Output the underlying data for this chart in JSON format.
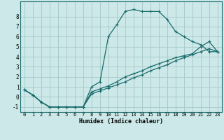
{
  "xlabel": "Humidex (Indice chaleur)",
  "bg_color": "#cce8e8",
  "grid_color": "#aacccc",
  "line_color": "#1a6b6b",
  "xlim": [
    -0.5,
    23.5
  ],
  "ylim": [
    -1.5,
    9.5
  ],
  "xticks": [
    0,
    1,
    2,
    3,
    4,
    5,
    6,
    7,
    8,
    9,
    10,
    11,
    12,
    13,
    14,
    15,
    16,
    17,
    18,
    19,
    20,
    21,
    22,
    23
  ],
  "yticks": [
    -1,
    0,
    1,
    2,
    3,
    4,
    5,
    6,
    7,
    8
  ],
  "line1_x": [
    0,
    1,
    2,
    3,
    4,
    5,
    6,
    7,
    8,
    9,
    10,
    11,
    12,
    13,
    14,
    15,
    16,
    17,
    18,
    19,
    20,
    21,
    22,
    23
  ],
  "line1_y": [
    0.7,
    0.2,
    -0.5,
    -1.0,
    -1.0,
    -1.0,
    -1.0,
    -1.0,
    1.0,
    1.5,
    6.0,
    7.2,
    8.5,
    8.7,
    8.5,
    8.5,
    8.5,
    7.7,
    6.5,
    6.0,
    5.5,
    5.2,
    4.5,
    4.5
  ],
  "line2_x": [
    0,
    1,
    2,
    3,
    4,
    5,
    6,
    7,
    8,
    9,
    10,
    11,
    12,
    13,
    14,
    15,
    16,
    17,
    18,
    19,
    20,
    21,
    22,
    23
  ],
  "line2_y": [
    0.7,
    0.2,
    -0.5,
    -1.0,
    -1.0,
    -1.0,
    -1.0,
    -1.0,
    0.5,
    0.8,
    1.1,
    1.5,
    2.0,
    2.3,
    2.6,
    3.0,
    3.3,
    3.6,
    3.9,
    4.1,
    4.3,
    5.0,
    5.5,
    4.5
  ],
  "line3_x": [
    0,
    1,
    2,
    3,
    4,
    5,
    6,
    7,
    8,
    9,
    10,
    11,
    12,
    13,
    14,
    15,
    16,
    17,
    18,
    19,
    20,
    21,
    22,
    23
  ],
  "line3_y": [
    0.7,
    0.2,
    -0.5,
    -1.0,
    -1.0,
    -1.0,
    -1.0,
    -1.0,
    0.3,
    0.6,
    0.9,
    1.2,
    1.5,
    1.9,
    2.2,
    2.6,
    2.9,
    3.2,
    3.6,
    3.9,
    4.2,
    4.5,
    4.8,
    4.5
  ]
}
